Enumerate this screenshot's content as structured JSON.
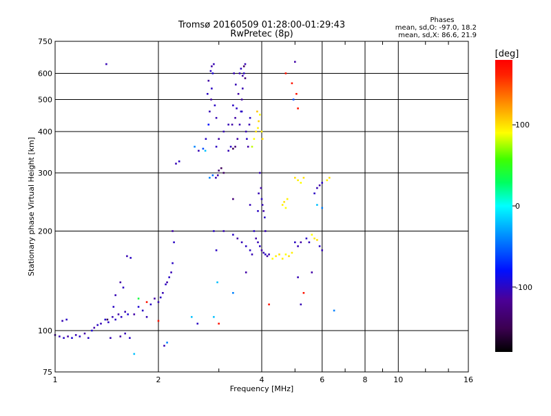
{
  "chart_data": {
    "type": "scatter",
    "title": "Tromsø 20160509 01:28:00-01:29:43",
    "subtitle": "RwPretec (8p)",
    "xlabel": "Frequency [MHz]",
    "ylabel": "Stationary phase Virtual Height [km]",
    "x_scale": "log",
    "y_scale": "log",
    "xlim": [
      1,
      16
    ],
    "ylim": [
      75,
      750
    ],
    "grid": true,
    "x_ticks": [
      {
        "value": 1,
        "label": "1"
      },
      {
        "value": 2,
        "label": "2"
      },
      {
        "value": 4,
        "label": "4"
      },
      {
        "value": 6,
        "label": "6"
      },
      {
        "value": 8,
        "label": "8"
      },
      {
        "value": 10,
        "label": "10"
      },
      {
        "value": 16,
        "label": "16"
      }
    ],
    "x_minor": [
      3,
      5,
      7,
      9,
      12,
      14
    ],
    "y_ticks": [
      {
        "value": 75,
        "label": "75"
      },
      {
        "value": 100,
        "label": "100"
      },
      {
        "value": 200,
        "label": "200"
      },
      {
        "value": 300,
        "label": "300"
      },
      {
        "value": 400,
        "label": "400"
      },
      {
        "value": 500,
        "label": "500"
      },
      {
        "value": 600,
        "label": "600"
      },
      {
        "value": 750,
        "label": "750"
      }
    ],
    "stats": {
      "heading": "Phases",
      "line1": "mean, sd,O: -97.0, 18.2",
      "line2": "mean, sd,X:  86.6, 21.9"
    },
    "colorbar": {
      "label": "[deg]",
      "range": [
        -180,
        180
      ],
      "ticks": [
        {
          "value": 100,
          "label": "100"
        },
        {
          "value": 0,
          "label": "0"
        },
        {
          "value": -100,
          "label": "-100"
        }
      ]
    },
    "series": [
      {
        "points": [
          [
            1.0,
            97,
            -110
          ],
          [
            1.03,
            96,
            -105
          ],
          [
            1.06,
            95,
            -100
          ],
          [
            1.09,
            96,
            -110
          ],
          [
            1.12,
            95,
            -95
          ],
          [
            1.15,
            97,
            -105
          ],
          [
            1.18,
            96,
            -100
          ],
          [
            1.22,
            98,
            -110
          ],
          [
            1.25,
            95,
            -100
          ],
          [
            1.28,
            100,
            -95
          ],
          [
            1.05,
            107,
            -105
          ],
          [
            1.08,
            108,
            -100
          ],
          [
            1.3,
            102,
            -110
          ],
          [
            1.33,
            104,
            -100
          ],
          [
            1.36,
            105,
            -105
          ],
          [
            1.4,
            108,
            -95
          ],
          [
            1.43,
            106,
            -100
          ],
          [
            1.47,
            110,
            -105
          ],
          [
            1.5,
            108,
            -100
          ],
          [
            1.53,
            112,
            -110
          ],
          [
            1.56,
            110,
            -100
          ],
          [
            1.6,
            114,
            -105
          ],
          [
            1.63,
            112,
            -95
          ],
          [
            1.48,
            118,
            -100
          ],
          [
            1.5,
            128,
            -105
          ],
          [
            1.55,
            140,
            -110
          ],
          [
            1.58,
            135,
            -100
          ],
          [
            1.42,
            108,
            -150
          ],
          [
            1.45,
            95,
            -105
          ],
          [
            1.55,
            96,
            -110
          ],
          [
            1.6,
            98,
            -105
          ],
          [
            1.65,
            95,
            -100
          ],
          [
            1.62,
            168,
            -105
          ],
          [
            1.66,
            166,
            -100
          ],
          [
            1.7,
            112,
            -110
          ],
          [
            1.75,
            118,
            -95
          ],
          [
            1.8,
            115,
            -100
          ],
          [
            1.85,
            110,
            -105
          ],
          [
            1.9,
            120,
            -100
          ],
          [
            1.95,
            125,
            -110
          ],
          [
            2.0,
            122,
            -105
          ],
          [
            2.03,
            126,
            -100
          ],
          [
            2.06,
            130,
            -105
          ],
          [
            2.1,
            138,
            -100
          ],
          [
            2.12,
            140,
            -110
          ],
          [
            2.15,
            145,
            -100
          ],
          [
            2.18,
            150,
            -105
          ],
          [
            2.2,
            160,
            -100
          ],
          [
            2.08,
            90,
            -105
          ],
          [
            2.12,
            92,
            -40
          ],
          [
            2.2,
            200,
            -110
          ],
          [
            2.22,
            185,
            -100
          ],
          [
            2.25,
            320,
            -105
          ],
          [
            2.3,
            325,
            -100
          ],
          [
            2.55,
            360,
            -40
          ],
          [
            2.62,
            350,
            -105
          ],
          [
            2.7,
            355,
            -60
          ],
          [
            2.75,
            380,
            -100
          ],
          [
            2.8,
            420,
            -80
          ],
          [
            2.82,
            460,
            -105
          ],
          [
            2.85,
            500,
            -110
          ],
          [
            2.86,
            540,
            -100
          ],
          [
            2.88,
            600,
            -95
          ],
          [
            2.9,
            640,
            -105
          ],
          [
            2.78,
            520,
            -100
          ],
          [
            2.8,
            570,
            -110
          ],
          [
            2.92,
            480,
            -100
          ],
          [
            2.95,
            440,
            -105
          ],
          [
            2.74,
            350,
            -20
          ],
          [
            2.82,
            290,
            -40
          ],
          [
            2.88,
            295,
            -50
          ],
          [
            2.94,
            290,
            -105
          ],
          [
            2.98,
            295,
            -110
          ],
          [
            3.0,
            305,
            -130
          ],
          [
            3.05,
            310,
            -145
          ],
          [
            3.1,
            300,
            -140
          ],
          [
            3.2,
            350,
            -105
          ],
          [
            3.25,
            360,
            -100
          ],
          [
            3.3,
            355,
            -150
          ],
          [
            3.35,
            360,
            -130
          ],
          [
            3.4,
            380,
            -110
          ],
          [
            3.45,
            420,
            -105
          ],
          [
            3.48,
            460,
            -100
          ],
          [
            3.5,
            500,
            -110
          ],
          [
            3.52,
            540,
            -105
          ],
          [
            3.55,
            600,
            -100
          ],
          [
            3.58,
            640,
            -105
          ],
          [
            3.38,
            470,
            -100
          ],
          [
            3.42,
            520,
            -110
          ],
          [
            3.32,
            600,
            -105
          ],
          [
            3.3,
            480,
            -100
          ],
          [
            3.28,
            420,
            -110
          ],
          [
            3.6,
            400,
            -105
          ],
          [
            3.62,
            380,
            -100
          ],
          [
            3.65,
            360,
            -110
          ],
          [
            3.68,
            420,
            -105
          ],
          [
            3.7,
            440,
            -100
          ],
          [
            3.55,
            630,
            -140
          ],
          [
            3.58,
            580,
            -130
          ],
          [
            3.8,
            380,
            90
          ],
          [
            3.85,
            400,
            100
          ],
          [
            3.9,
            410,
            95
          ],
          [
            3.92,
            430,
            105
          ],
          [
            3.95,
            450,
            90
          ],
          [
            3.88,
            460,
            110
          ],
          [
            4.0,
            400,
            95
          ],
          [
            4.02,
            380,
            100
          ],
          [
            3.75,
            360,
            80
          ],
          [
            3.95,
            300,
            -105
          ],
          [
            3.98,
            270,
            -110
          ],
          [
            4.0,
            250,
            -100
          ],
          [
            4.02,
            240,
            -105
          ],
          [
            4.05,
            230,
            -110
          ],
          [
            4.08,
            220,
            -100
          ],
          [
            3.92,
            260,
            -105
          ],
          [
            3.8,
            200,
            -100
          ],
          [
            3.85,
            190,
            -110
          ],
          [
            3.9,
            185,
            -105
          ],
          [
            3.95,
            180,
            -100
          ],
          [
            4.0,
            175,
            -110
          ],
          [
            4.05,
            172,
            -105
          ],
          [
            4.1,
            170,
            -100
          ],
          [
            4.15,
            168,
            -110
          ],
          [
            4.2,
            170,
            -105
          ],
          [
            3.6,
            180,
            -100
          ],
          [
            3.5,
            185,
            -105
          ],
          [
            3.4,
            190,
            -110
          ],
          [
            3.3,
            195,
            -100
          ],
          [
            3.7,
            175,
            -100
          ],
          [
            3.75,
            170,
            -105
          ],
          [
            4.3,
            165,
            90
          ],
          [
            4.4,
            168,
            95
          ],
          [
            4.5,
            170,
            100
          ],
          [
            4.6,
            165,
            95
          ],
          [
            4.7,
            170,
            90
          ],
          [
            4.8,
            168,
            100
          ],
          [
            4.9,
            172,
            95
          ],
          [
            4.6,
            240,
            95
          ],
          [
            4.65,
            245,
            100
          ],
          [
            4.7,
            235,
            90
          ],
          [
            4.75,
            250,
            95
          ],
          [
            5.0,
            290,
            100
          ],
          [
            5.1,
            285,
            95
          ],
          [
            5.2,
            280,
            90
          ],
          [
            5.3,
            290,
            100
          ],
          [
            5.0,
            185,
            -100
          ],
          [
            5.1,
            180,
            -105
          ],
          [
            5.2,
            185,
            -110
          ],
          [
            5.4,
            190,
            -100
          ],
          [
            5.5,
            185,
            -105
          ],
          [
            5.6,
            195,
            90
          ],
          [
            5.7,
            190,
            95
          ],
          [
            5.8,
            188,
            100
          ],
          [
            5.9,
            180,
            -100
          ],
          [
            6.0,
            175,
            -105
          ],
          [
            5.7,
            260,
            -100
          ],
          [
            5.8,
            270,
            -105
          ],
          [
            5.9,
            275,
            -110
          ],
          [
            6.0,
            280,
            -100
          ],
          [
            6.2,
            285,
            95
          ],
          [
            6.3,
            290,
            100
          ],
          [
            5.8,
            240,
            -20
          ],
          [
            6.0,
            235,
            -40
          ],
          [
            5.2,
            120,
            -105
          ],
          [
            5.3,
            130,
            170
          ],
          [
            5.6,
            150,
            -110
          ],
          [
            4.7,
            600,
            170
          ],
          [
            4.9,
            560,
            170
          ],
          [
            4.95,
            500,
            -60
          ],
          [
            5.0,
            650,
            -110
          ],
          [
            5.05,
            520,
            170
          ],
          [
            5.1,
            470,
            170
          ],
          [
            1.41,
            640,
            -105
          ],
          [
            2.9,
            200,
            -100
          ],
          [
            2.95,
            175,
            -100
          ],
          [
            2.97,
            140,
            -20
          ],
          [
            3.1,
            200,
            -105
          ],
          [
            3.3,
            130,
            -40
          ],
          [
            3.6,
            150,
            -110
          ],
          [
            4.2,
            120,
            170
          ],
          [
            5.1,
            145,
            -105
          ],
          [
            6.5,
            115,
            -40
          ],
          [
            2.9,
            110,
            -20
          ],
          [
            2.6,
            105,
            -100
          ],
          [
            3.0,
            105,
            170
          ],
          [
            1.7,
            85,
            -20
          ],
          [
            1.75,
            125,
            40
          ],
          [
            1.85,
            122,
            170
          ],
          [
            2.0,
            107,
            170
          ],
          [
            2.5,
            110,
            -20
          ],
          [
            3.3,
            250,
            -130
          ],
          [
            3.7,
            240,
            -105
          ],
          [
            3.9,
            230,
            -100
          ],
          [
            4.1,
            200,
            -105
          ],
          [
            3.2,
            420,
            -105
          ],
          [
            3.35,
            440,
            -110
          ],
          [
            3.5,
            460,
            -100
          ],
          [
            3.1,
            400,
            -105
          ],
          [
            3.0,
            380,
            -110
          ],
          [
            2.95,
            360,
            -100
          ],
          [
            3.45,
            600,
            -105
          ],
          [
            3.48,
            620,
            -100
          ],
          [
            3.52,
            590,
            -110
          ],
          [
            3.36,
            555,
            -105
          ],
          [
            2.84,
            610,
            -100
          ],
          [
            2.86,
            630,
            -110
          ]
        ]
      }
    ]
  }
}
